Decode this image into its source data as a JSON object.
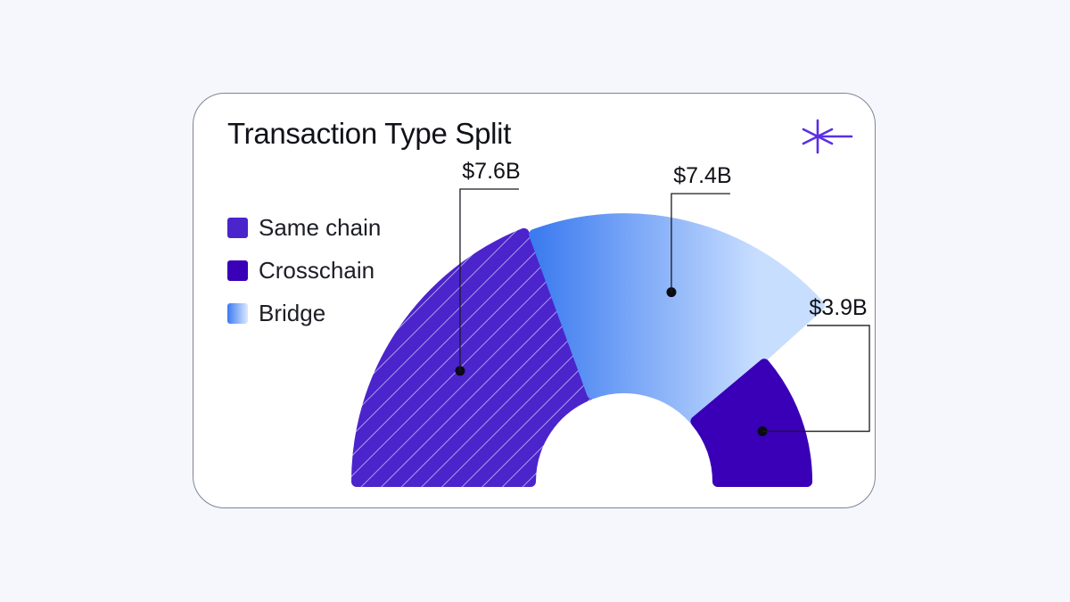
{
  "card": {
    "title": "Transaction Type Split",
    "logo_icon": "asterisk-arrow-icon"
  },
  "chart_data": {
    "type": "pie",
    "title": "Transaction Type Split",
    "legend_position": "left",
    "series": [
      {
        "name": "Same chain",
        "value": 7.6,
        "label": "$7.6B",
        "color": "#4b24cc",
        "pattern": "diagonal-stripes"
      },
      {
        "name": "Bridge",
        "value": 7.4,
        "label": "$7.4B",
        "color": "#3c7bf0",
        "color_end": "#c8deff",
        "pattern": "gradient"
      },
      {
        "name": "Crosschain",
        "value": 3.9,
        "label": "$3.9B",
        "color": "#3900b8",
        "pattern": "solid"
      }
    ]
  },
  "legend": [
    {
      "name": "Same chain",
      "key": "same"
    },
    {
      "name": "Crosschain",
      "key": "cross"
    },
    {
      "name": "Bridge",
      "key": "bridge"
    }
  ]
}
